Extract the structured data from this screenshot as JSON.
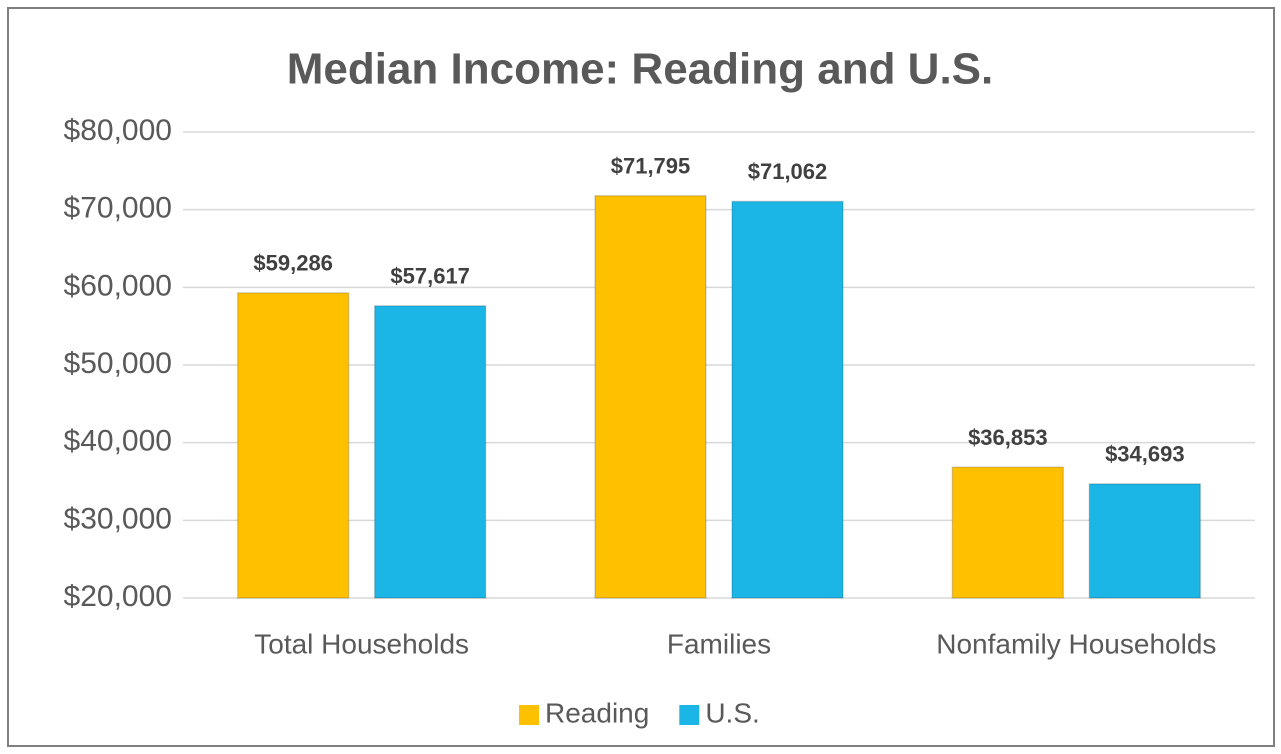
{
  "chart_data": {
    "type": "bar",
    "title": "Median Income: Reading and U.S.",
    "categories": [
      "Total Households",
      "Families",
      "Nonfamily Households"
    ],
    "series": [
      {
        "name": "Reading",
        "color": "#ffc000",
        "values": [
          59286,
          71795,
          36853
        ],
        "value_labels": [
          "$59,286",
          "$71,795",
          "$36,853"
        ]
      },
      {
        "name": "U.S.",
        "color": "#1cb6e6",
        "values": [
          57617,
          71062,
          34693
        ],
        "value_labels": [
          "$57,617",
          "$71,062",
          "$34,693"
        ]
      }
    ],
    "ylim": [
      20000,
      80000
    ],
    "yticks": [
      {
        "value": 20000,
        "label": "$20,000"
      },
      {
        "value": 30000,
        "label": "$30,000"
      },
      {
        "value": 40000,
        "label": "$40,000"
      },
      {
        "value": 50000,
        "label": "$50,000"
      },
      {
        "value": 60000,
        "label": "$60,000"
      },
      {
        "value": 70000,
        "label": "$70,000"
      },
      {
        "value": 80000,
        "label": "$80,000"
      }
    ],
    "grid": true,
    "legend": "bottom"
  }
}
